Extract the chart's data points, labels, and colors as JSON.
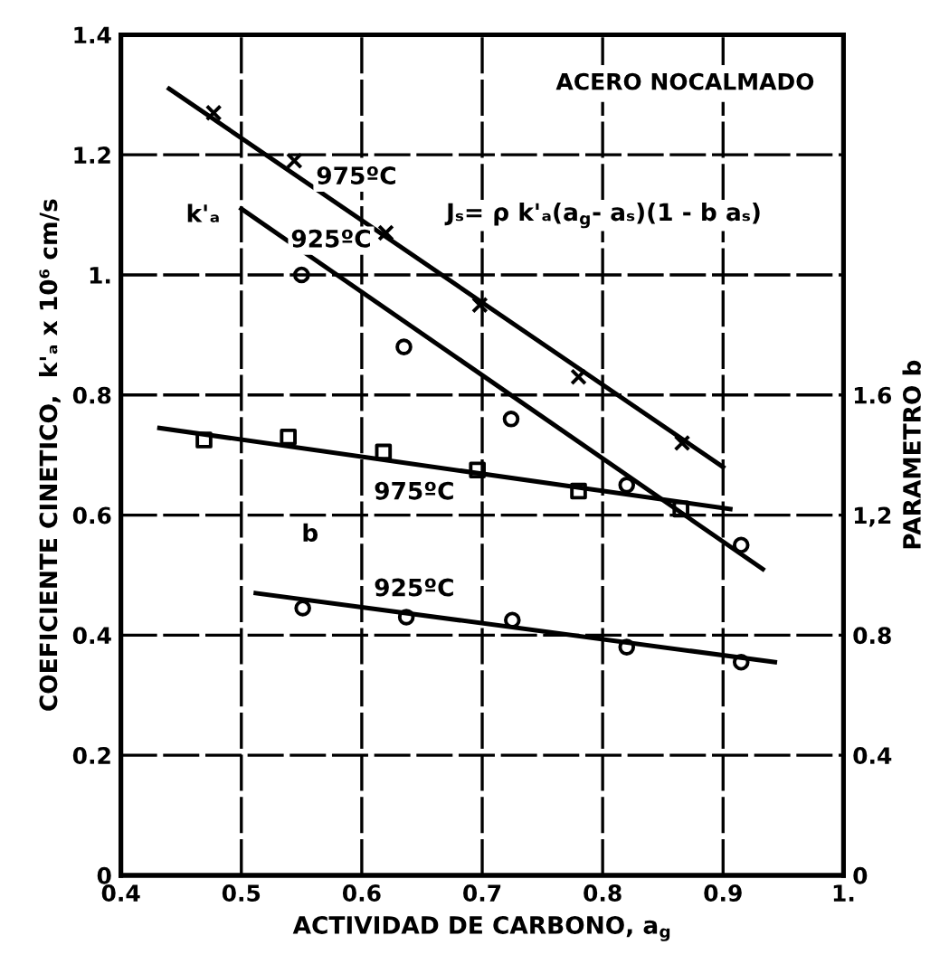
{
  "chart_data": {
    "type": "scatter",
    "title": "ACERO NOCALMADO",
    "xlabel": "ACTIVIDAD DE CARBONO, a$_{g}$",
    "ylabel": "COEFICIENTE CINETICO,  k'ₐ x 10⁶ cm/s",
    "y2label": "PARAMETRO b",
    "xlim": [
      0.4,
      1.0
    ],
    "xticks": [
      0.4,
      0.5,
      0.6,
      0.7,
      0.8,
      0.9,
      {
        "value": 1.0,
        "label": "1."
      }
    ],
    "ylim": [
      0,
      1.4
    ],
    "yticks": [
      0,
      0.2,
      0.4,
      0.6,
      0.8,
      {
        "value": 1.0,
        "label": "1."
      },
      1.2,
      1.4
    ],
    "y2lim": [
      0,
      2.8
    ],
    "y2ticks": [
      0,
      0.4,
      0.8,
      {
        "value": 1.2,
        "label": "1,2"
      },
      1.6
    ],
    "grid": true,
    "legend": false,
    "series": [
      {
        "marker": "cross",
        "color": "#000000",
        "x": [
          0.477,
          0.544,
          0.62,
          0.698,
          0.78,
          0.866
        ],
        "values": [
          1.27,
          1.19,
          1.07,
          0.95,
          0.83,
          0.72
        ]
      },
      {
        "type": "line",
        "marker": "none",
        "line_style": "solid",
        "color": "#000000",
        "x": [
          0.44,
          0.9
        ],
        "values": [
          1.31,
          0.68
        ]
      },
      {
        "marker": "circle",
        "color": "#000000",
        "x": [
          0.55,
          0.635,
          0.724,
          0.82,
          0.915
        ],
        "values": [
          1.0,
          0.88,
          0.76,
          0.65,
          0.55
        ]
      },
      {
        "type": "line",
        "marker": "none",
        "line_style": "solid",
        "color": "#000000",
        "x": [
          0.5,
          0.933
        ],
        "values": [
          1.11,
          0.51
        ]
      },
      {
        "marker": "square",
        "color": "#000000",
        "axis": "y2",
        "x": [
          0.469,
          0.539,
          0.618,
          0.696,
          0.78,
          0.865
        ],
        "values": [
          1.45,
          1.46,
          1.41,
          1.35,
          1.28,
          1.22
        ]
      },
      {
        "type": "line",
        "marker": "none",
        "line_style": "solid",
        "color": "#000000",
        "axis": "y2",
        "x": [
          0.432,
          0.906
        ],
        "values": [
          1.49,
          1.22
        ]
      },
      {
        "marker": "circle",
        "color": "#000000",
        "axis": "y2",
        "x": [
          0.551,
          0.637,
          0.725,
          0.82,
          0.915
        ],
        "values": [
          0.89,
          0.86,
          0.85,
          0.76,
          0.71
        ]
      },
      {
        "type": "line",
        "marker": "none",
        "line_style": "solid",
        "color": "#000000",
        "axis": "y2",
        "x": [
          0.512,
          0.943
        ],
        "values": [
          0.94,
          0.71
        ]
      }
    ],
    "annotations": [
      "Jₛ= ρ k'ₐ(a$_{g}$- aₛ)(1 - b aₛ)",
      "k'ₐ",
      "975ºC",
      "925ºC",
      "b",
      "975ºC",
      "925ºC"
    ]
  }
}
